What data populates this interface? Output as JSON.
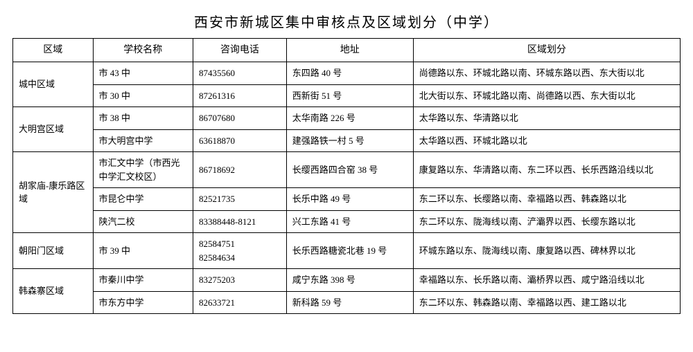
{
  "title": "西安市新城区集中审核点及区域划分（中学）",
  "headers": {
    "region": "区域",
    "school": "学校名称",
    "phone": "咨询电话",
    "address": "地址",
    "area": "区域划分"
  },
  "groups": [
    {
      "region": "城中区域",
      "rows": [
        {
          "school": "市 43 中",
          "phone": "87435560",
          "address": "东四路 40 号",
          "area": "尚德路以东、环城北路以南、环城东路以西、东大街以北"
        },
        {
          "school": "市 30 中",
          "phone": "87261316",
          "address": "西新街 51 号",
          "area": "北大街以东、环城北路以南、尚德路以西、东大街以北"
        }
      ]
    },
    {
      "region": "大明宫区域",
      "rows": [
        {
          "school": "市 38 中",
          "phone": "86707680",
          "address": "太华南路 226 号",
          "area": "太华路以东、华清路以北"
        },
        {
          "school": "市大明宫中学",
          "phone": "63618870",
          "address": "建强路铁一村 5 号",
          "area": "太华路以西、环城北路以北"
        }
      ]
    },
    {
      "region": "胡家庙-康乐路区域",
      "rows": [
        {
          "school": "市汇文中学（市西光中学汇文校区）",
          "phone": "86718692",
          "address": "长缨西路四合窑 38 号",
          "area": "康复路以东、华清路以南、东二环以西、长乐西路沿线以北"
        },
        {
          "school": "市昆仑中学",
          "phone": "82521735",
          "address": "长乐中路 49 号",
          "area": "东二环以东、长缨路以南、幸福路以西、韩森路以北"
        },
        {
          "school": "陕汽二校",
          "phone": "83388448-8121",
          "address": "兴工东路 41 号",
          "area": "东二环以东、陇海线以南、浐灞界以西、长缨东路以北"
        }
      ]
    },
    {
      "region": "朝阳门区域",
      "rows": [
        {
          "school": "市 39 中",
          "phone": "82584751\n82584634",
          "address": "长乐西路糖瓷北巷 19 号",
          "area": "环城东路以东、陇海线以南、康复路以西、碑林界以北"
        }
      ]
    },
    {
      "region": "韩森寨区域",
      "rows": [
        {
          "school": "市秦川中学",
          "phone": "83275203",
          "address": "咸宁东路 398 号",
          "area": "幸福路以东、长乐路以南、灞桥界以西、咸宁路沿线以北"
        },
        {
          "school": "市东方中学",
          "phone": "82633721",
          "address": "新科路 59 号",
          "area": "东二环以东、韩森路以南、幸福路以西、建工路以北"
        }
      ]
    }
  ]
}
